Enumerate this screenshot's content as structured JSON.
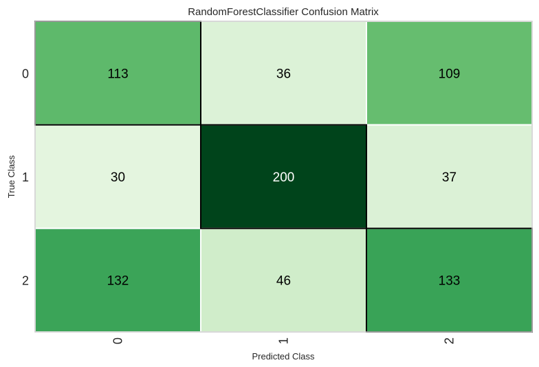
{
  "chart_data": {
    "type": "heatmap",
    "title": "RandomForestClassifier Confusion Matrix",
    "xlabel": "Predicted Class",
    "ylabel": "True Class",
    "x_categories": [
      "0",
      "1",
      "2"
    ],
    "y_categories": [
      "0",
      "1",
      "2"
    ],
    "values": [
      [
        113,
        36,
        109
      ],
      [
        30,
        200,
        37
      ],
      [
        132,
        46,
        133
      ]
    ],
    "colormap": "Greens",
    "highlighted_diagonal": true,
    "diagonal_border_color": "#000000",
    "cell_border_color": "#ffffff",
    "frame_color": "#cccccc"
  }
}
